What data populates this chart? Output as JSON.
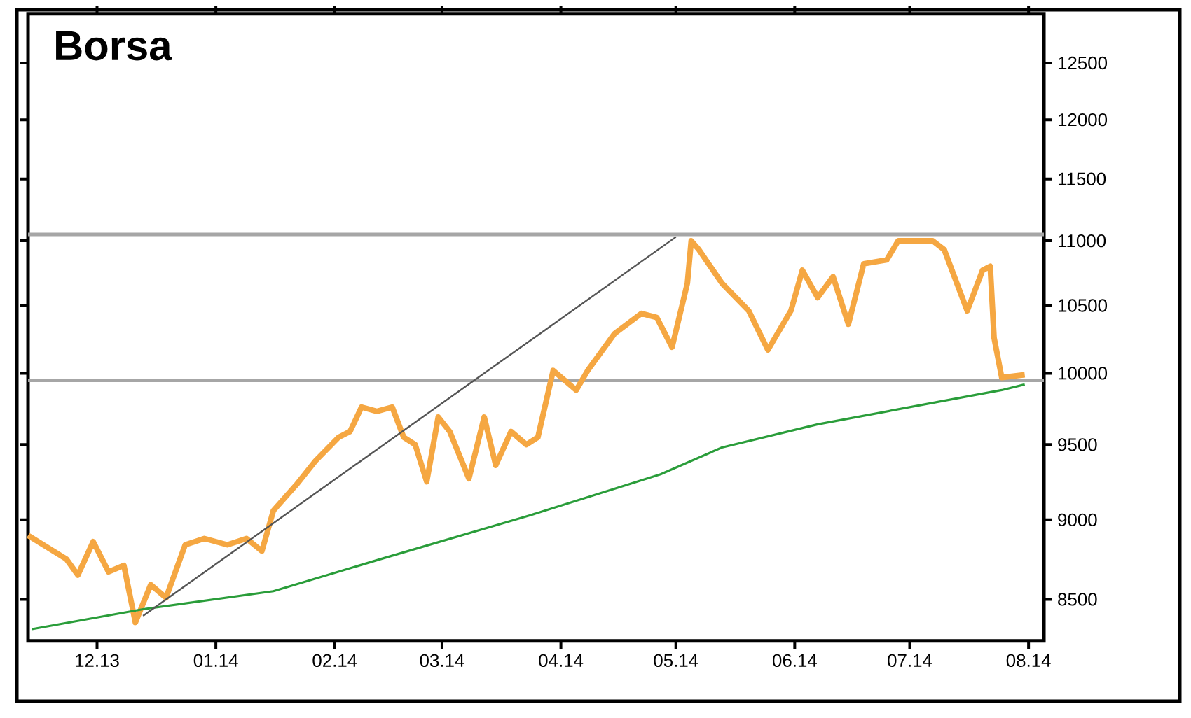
{
  "chart_data": {
    "type": "line",
    "title": "Borsa",
    "log": "y",
    "grid": false,
    "marker": "none",
    "line_style": "solid",
    "xlim": [
      "2013-11-13",
      "2014-08-05"
    ],
    "xticks": [
      {
        "value": "2013-12-01",
        "label": "12.13"
      },
      {
        "value": "2014-01-01",
        "label": "01.14"
      },
      {
        "value": "2014-02-01",
        "label": "02.14"
      },
      {
        "value": "2014-03-01",
        "label": "03.14"
      },
      {
        "value": "2014-04-01",
        "label": "04.14"
      },
      {
        "value": "2014-05-01",
        "label": "05.14"
      },
      {
        "value": "2014-06-01",
        "label": "06.14"
      },
      {
        "value": "2014-07-01",
        "label": "07.14"
      },
      {
        "value": "2014-08-01",
        "label": "08.14"
      }
    ],
    "ylim": [
      8250,
      12950
    ],
    "yticks": [
      8500,
      9000,
      9500,
      10000,
      10500,
      11000,
      11500,
      12000,
      12500
    ],
    "ref_lines": [
      {
        "axis": "y",
        "value": 11050,
        "color": "#a6a6a6"
      },
      {
        "axis": "y",
        "value": 9950,
        "color": "#a6a6a6"
      }
    ],
    "series": [
      {
        "color": "#f5a742",
        "x": [
          "2013-11-13",
          "2013-11-23",
          "2013-11-26",
          "2013-11-30",
          "2013-12-04",
          "2013-12-08",
          "2013-12-11",
          "2013-12-15",
          "2013-12-19",
          "2013-12-24",
          "2013-12-29",
          "2014-01-04",
          "2014-01-09",
          "2014-01-13",
          "2014-01-16",
          "2014-01-22",
          "2014-01-27",
          "2014-02-02",
          "2014-02-05",
          "2014-02-08",
          "2014-02-12",
          "2014-02-16",
          "2014-02-19",
          "2014-02-22",
          "2014-02-25",
          "2014-02-28",
          "2014-03-03",
          "2014-03-08",
          "2014-03-12",
          "2014-03-15",
          "2014-03-19",
          "2014-03-23",
          "2014-03-26",
          "2014-03-30",
          "2014-04-05",
          "2014-04-08",
          "2014-04-15",
          "2014-04-22",
          "2014-04-26",
          "2014-04-30",
          "2014-05-04",
          "2014-05-05",
          "2014-05-07",
          "2014-05-13",
          "2014-05-20",
          "2014-05-25",
          "2014-05-31",
          "2014-06-03",
          "2014-06-07",
          "2014-06-11",
          "2014-06-15",
          "2014-06-19",
          "2014-06-25",
          "2014-06-28",
          "2014-07-07",
          "2014-07-10",
          "2014-07-16",
          "2014-07-20",
          "2014-07-22",
          "2014-07-23",
          "2014-07-25",
          "2014-07-31"
        ],
        "values": [
          8900,
          8750,
          8650,
          8860,
          8670,
          8710,
          8360,
          8590,
          8510,
          8840,
          8880,
          8840,
          8880,
          8800,
          9060,
          9230,
          9390,
          9550,
          9590,
          9760,
          9730,
          9760,
          9550,
          9500,
          9250,
          9690,
          9590,
          9270,
          9690,
          9360,
          9590,
          9500,
          9550,
          10020,
          9880,
          10020,
          10290,
          10440,
          10410,
          10190,
          10670,
          11000,
          10930,
          10670,
          10460,
          10170,
          10460,
          10770,
          10560,
          10720,
          10360,
          10820,
          10850,
          11000,
          11000,
          10930,
          10460,
          10770,
          10800,
          10260,
          9970,
          9990
        ]
      },
      {
        "color": "#2a9d3a",
        "x": [
          "2013-11-14",
          "2013-12-13",
          "2014-01-16",
          "2014-02-13",
          "2014-03-24",
          "2014-04-27",
          "2014-05-13",
          "2014-06-07",
          "2014-07-25",
          "2014-07-31"
        ],
        "values": [
          8320,
          8440,
          8550,
          8750,
          9030,
          9300,
          9480,
          9640,
          9880,
          9920
        ]
      },
      {
        "color": "#555555",
        "x": [
          "2013-12-13",
          "2014-05-01"
        ],
        "values": [
          8400,
          11030
        ]
      }
    ]
  }
}
